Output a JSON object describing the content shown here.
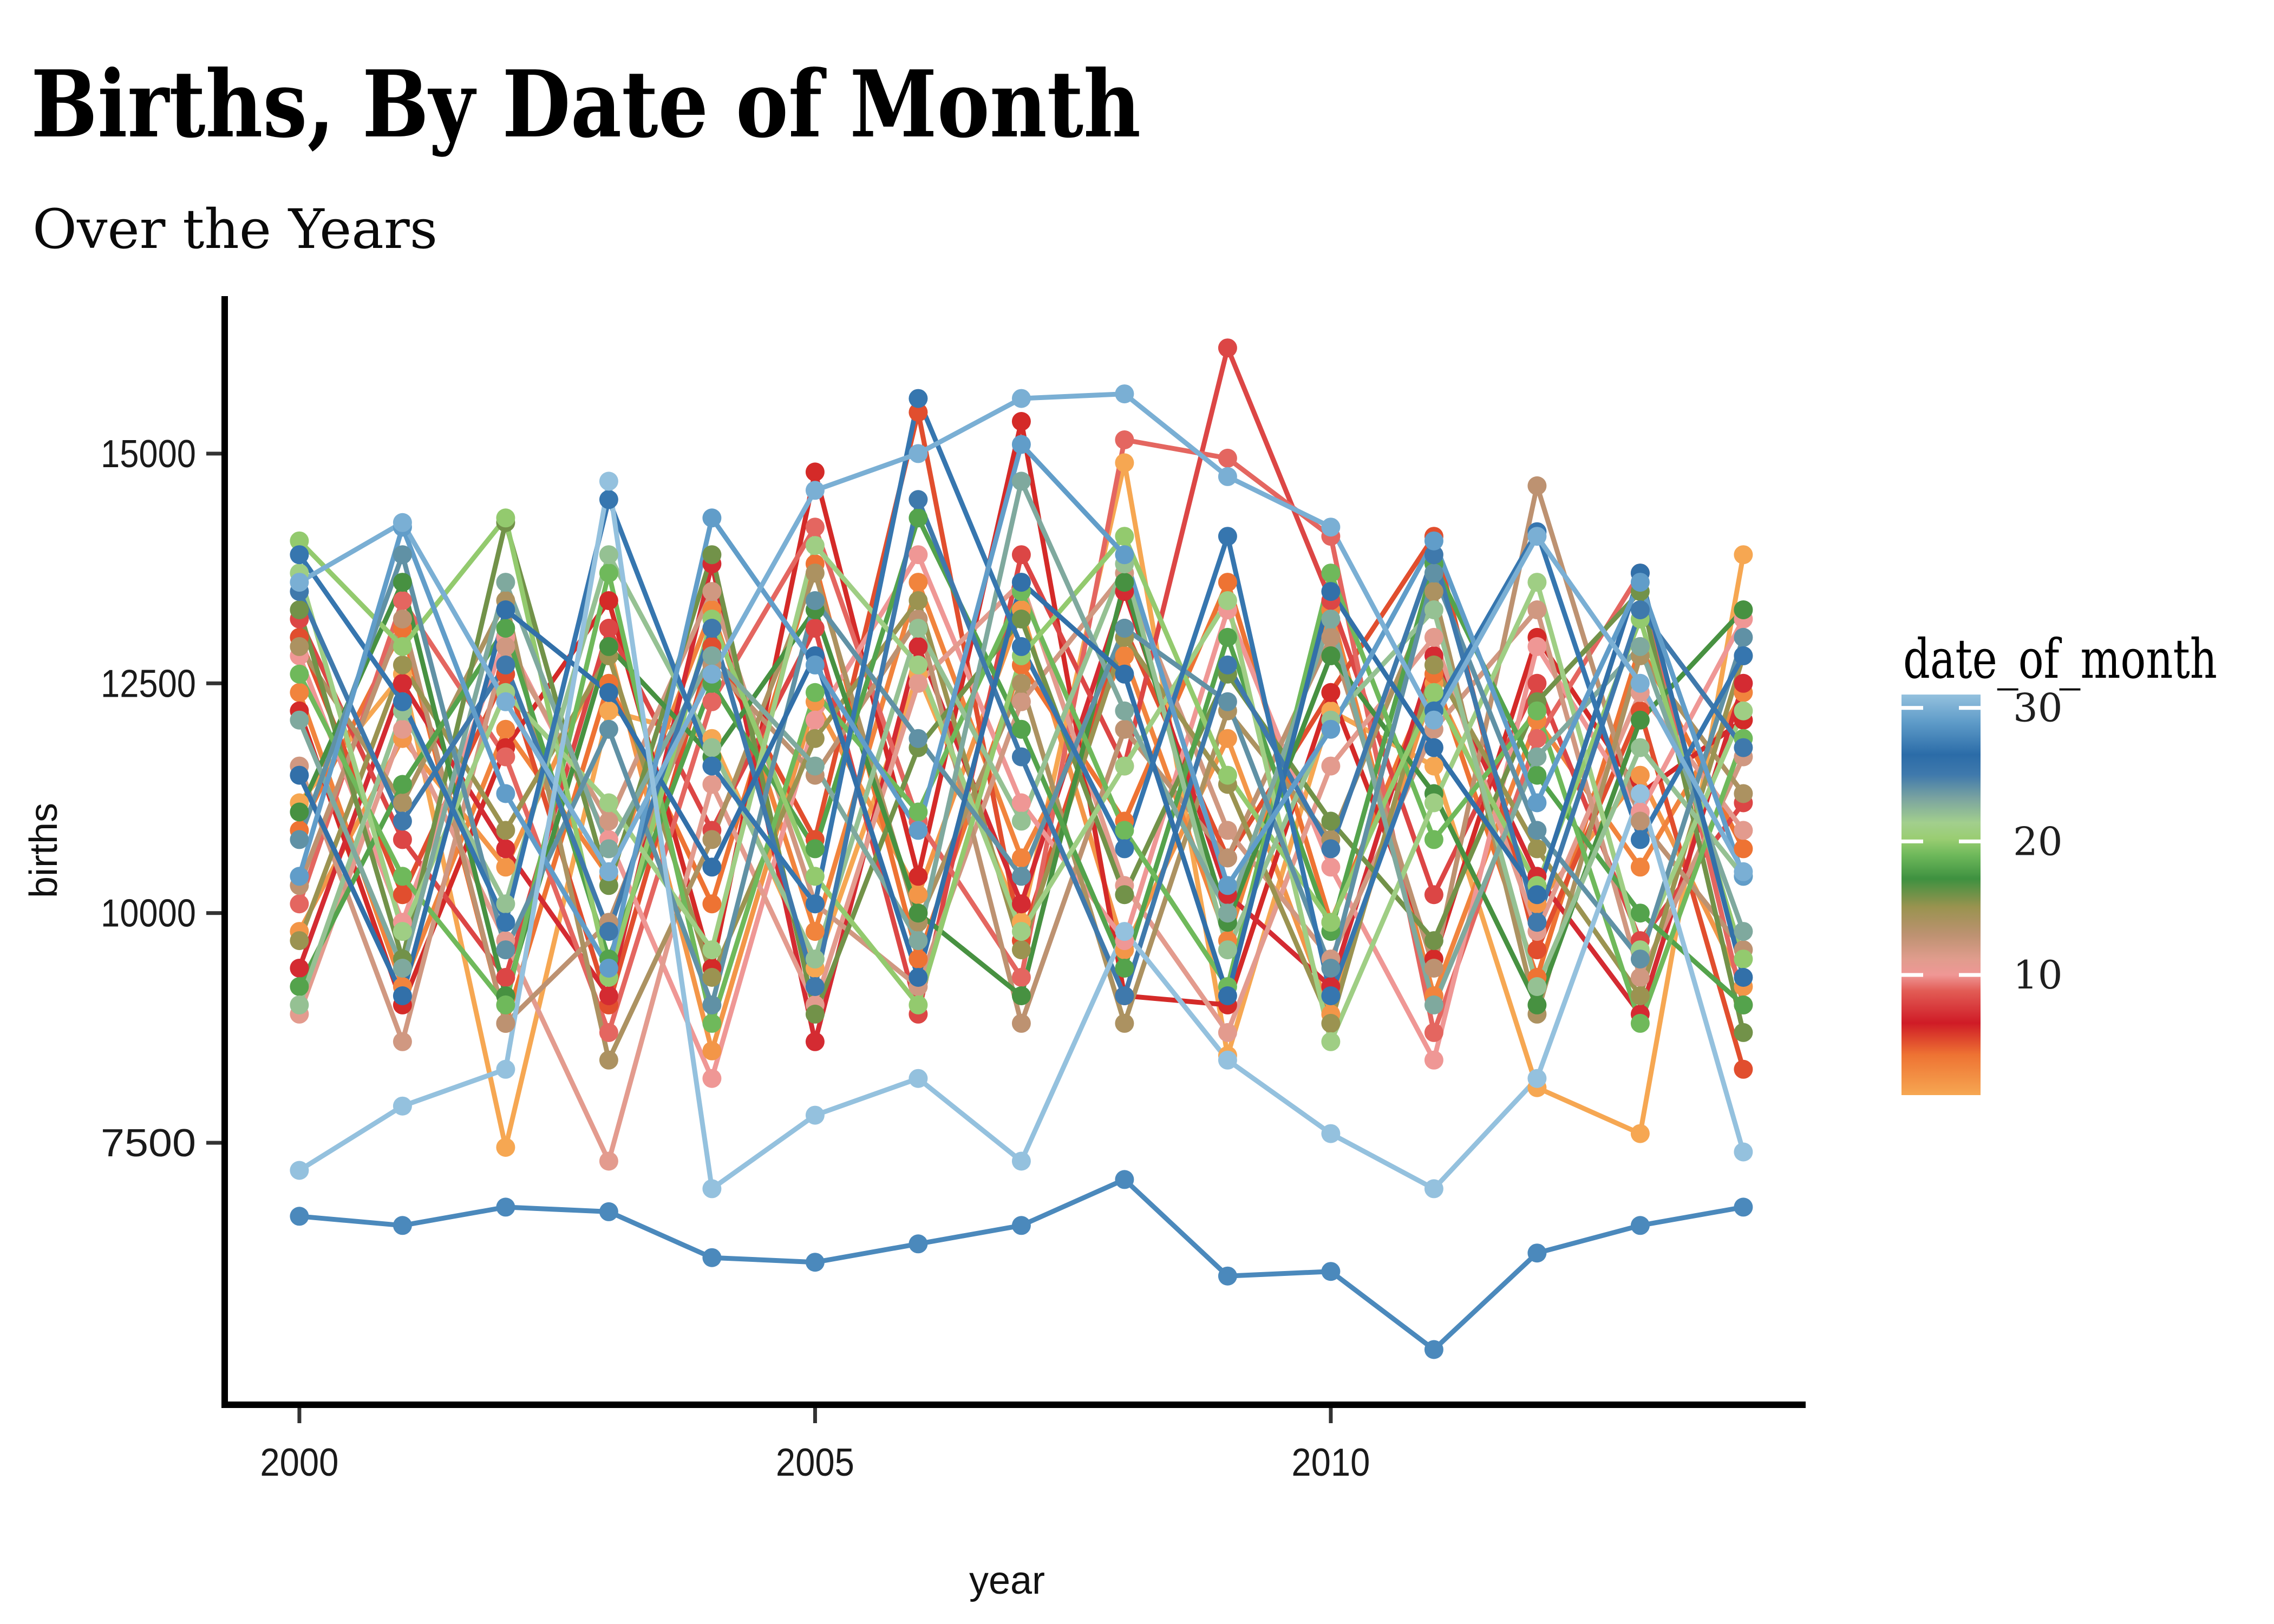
{
  "chart_data": {
    "type": "line",
    "title": "Births, By Date of Month",
    "subtitle": "Over the Years",
    "xlabel": "year",
    "ylabel": "births",
    "x": [
      2000,
      2001,
      2002,
      2003,
      2004,
      2005,
      2006,
      2007,
      2008,
      2009,
      2010,
      2011,
      2012,
      2013,
      2014
    ],
    "axes": {
      "x_ticks": [
        2000,
        2005,
        2010
      ],
      "y_ticks": [
        7500,
        10000,
        12500,
        15000
      ],
      "x_domain": [
        1999.276,
        2014.604
      ],
      "y_domain": [
        4649,
        16714
      ],
      "grid": false,
      "panel_border": "left-bottom-only"
    },
    "legend": {
      "title": "date_of_month",
      "position": "right",
      "ticks": [
        10,
        20,
        30
      ],
      "domain": [
        1,
        31
      ]
    },
    "color_scale": {
      "stops": [
        {
          "t": 0.0,
          "color": "#F6A752"
        },
        {
          "t": 0.1,
          "color": "#EE7333"
        },
        {
          "t": 0.18,
          "color": "#CF1B26"
        },
        {
          "t": 0.26,
          "color": "#E25C55"
        },
        {
          "t": 0.3,
          "color": "#EF9795"
        },
        {
          "t": 0.34,
          "color": "#E09C8D"
        },
        {
          "t": 0.4,
          "color": "#BD9271"
        },
        {
          "t": 0.47,
          "color": "#99934F"
        },
        {
          "t": 0.54,
          "color": "#3E9140"
        },
        {
          "t": 0.6,
          "color": "#6FB95B"
        },
        {
          "t": 0.64,
          "color": "#9ACD72"
        },
        {
          "t": 0.68,
          "color": "#A2CF8D"
        },
        {
          "t": 0.74,
          "color": "#7BA4A0"
        },
        {
          "t": 0.8,
          "color": "#3F79AC"
        },
        {
          "t": 0.85,
          "color": "#2B6CA8"
        },
        {
          "t": 0.93,
          "color": "#5E9BC8"
        },
        {
          "t": 1.0,
          "color": "#94C1DE"
        }
      ]
    },
    "series": [
      {
        "date_of_month": 1,
        "values": [
          11200,
          12600,
          7450,
          12200,
          11900,
          9400,
          12600,
          9900,
          14900,
          8450,
          12200,
          11600,
          8100,
          7600,
          13900
        ]
      },
      {
        "date_of_month": 2,
        "values": [
          9800,
          11900,
          10500,
          12900,
          8500,
          12300,
          10200,
          13300,
          9600,
          11900,
          8900,
          12500,
          10100,
          11500,
          9200
        ]
      },
      {
        "date_of_month": 3,
        "values": [
          12400,
          9200,
          12000,
          10400,
          13300,
          9800,
          13600,
          10600,
          12800,
          9700,
          13300,
          9100,
          12100,
          10500,
          12400
        ]
      },
      {
        "date_of_month": 4,
        "values": [
          10900,
          13100,
          8800,
          12500,
          10100,
          13800,
          9500,
          12700,
          11000,
          13600,
          9900,
          12600,
          9300,
          12900,
          10700
        ]
      },
      {
        "date_of_month": 5,
        "values": [
          13000,
          10200,
          12600,
          9000,
          12900,
          10800,
          15450,
          9700,
          13100,
          10600,
          12400,
          14100,
          9600,
          12200,
          8300
        ]
      },
      {
        "date_of_month": 6,
        "values": [
          12200,
          9000,
          11800,
          13400,
          9400,
          14800,
          10400,
          15350,
          9100,
          9000,
          12400,
          9500,
          13000,
          11300,
          12100
        ]
      },
      {
        "date_of_month": 7,
        "values": [
          9400,
          12500,
          10700,
          9100,
          13800,
          8600,
          12900,
          10100,
          13500,
          10200,
          9200,
          12800,
          10400,
          8900,
          12500
        ]
      },
      {
        "date_of_month": 8,
        "values": [
          13200,
          10800,
          9300,
          13100,
          10900,
          13100,
          8900,
          13900,
          11600,
          16150,
          13400,
          10200,
          12500,
          9700,
          11200
        ]
      },
      {
        "date_of_month": 9,
        "values": [
          10100,
          13400,
          11700,
          8700,
          12300,
          14200,
          11000,
          9300,
          15150,
          14950,
          14100,
          8700,
          11900,
          13700,
          9000
        ]
      },
      {
        "date_of_month": 10,
        "values": [
          12800,
          9900,
          13000,
          10800,
          8200,
          12100,
          13900,
          11200,
          9700,
          13300,
          10500,
          8400,
          12900,
          11100,
          13200
        ]
      },
      {
        "date_of_month": 11,
        "values": [
          8900,
          12000,
          9700,
          7300,
          11400,
          9000,
          12500,
          13600,
          10300,
          8700,
          11600,
          13000,
          9800,
          12400,
          10900
        ]
      },
      {
        "date_of_month": 12,
        "values": [
          11600,
          8600,
          12900,
          11000,
          13500,
          10100,
          9200,
          12300,
          13700,
          10900,
          9500,
          12000,
          13300,
          9300,
          11700
        ]
      },
      {
        "date_of_month": 13,
        "values": [
          10300,
          13200,
          8800,
          9900,
          12700,
          11500,
          13200,
          8800,
          12000,
          10600,
          13000,
          9400,
          14650,
          11000,
          9600
        ]
      },
      {
        "date_of_month": 14,
        "values": [
          12900,
          11200,
          13400,
          8400,
          10800,
          13700,
          9900,
          12500,
          8800,
          12200,
          10800,
          13500,
          8900,
          12800,
          11300
        ]
      },
      {
        "date_of_month": 15,
        "values": [
          9700,
          12700,
          10900,
          12800,
          9300,
          11900,
          13400,
          9600,
          13000,
          11400,
          8800,
          12700,
          10700,
          9100,
          12800
        ]
      },
      {
        "date_of_month": 16,
        "values": [
          13300,
          9500,
          14250,
          10300,
          13900,
          8900,
          11800,
          13200,
          10200,
          12600,
          11000,
          9700,
          12300,
          13500,
          8700
        ]
      },
      {
        "date_of_month": 17,
        "values": [
          11100,
          13600,
          9100,
          12900,
          11700,
          13300,
          10000,
          9100,
          13600,
          9900,
          12800,
          11300,
          9000,
          12100,
          13300
        ]
      },
      {
        "date_of_month": 18,
        "values": [
          9200,
          11400,
          13100,
          9500,
          12500,
          10700,
          14300,
          12000,
          9400,
          13000,
          9800,
          13800,
          11500,
          10000,
          9000
        ]
      },
      {
        "date_of_month": 19,
        "values": [
          12600,
          10400,
          9000,
          13700,
          8800,
          12400,
          11100,
          13500,
          10900,
          9200,
          13700,
          10800,
          12200,
          8800,
          11900
        ]
      },
      {
        "date_of_month": 20,
        "values": [
          14050,
          12900,
          14300,
          9300,
          13200,
          10400,
          9000,
          12800,
          14100,
          11500,
          9900,
          12400,
          10300,
          13200,
          9500
        ]
      },
      {
        "date_of_month": 21,
        "values": [
          13700,
          9800,
          12400,
          11200,
          9600,
          14000,
          12700,
          9800,
          11600,
          13400,
          8600,
          11200,
          13600,
          9600,
          12200
        ]
      },
      {
        "date_of_month": 22,
        "values": [
          9000,
          12200,
          10100,
          13900,
          11800,
          9500,
          13100,
          11000,
          13800,
          9600,
          12100,
          13300,
          9200,
          11800,
          10400
        ]
      },
      {
        "date_of_month": 23,
        "values": [
          12100,
          9400,
          13600,
          10700,
          12800,
          11600,
          9700,
          14700,
          12200,
          10000,
          13200,
          9000,
          11700,
          12900,
          9800
        ]
      },
      {
        "date_of_month": 24,
        "values": [
          10800,
          13900,
          9600,
          12000,
          9000,
          13400,
          11900,
          10400,
          13100,
          12300,
          9400,
          13700,
          10900,
          9500,
          13000
        ]
      },
      {
        "date_of_month": 25,
        "values": [
          13500,
          11000,
          12700,
          9800,
          13100,
          9200,
          14500,
          11700,
          9100,
          12700,
          10700,
          13900,
          9900,
          13300,
          11800
        ]
      },
      {
        "date_of_month": 26,
        "values": [
          11500,
          9100,
          13300,
          12400,
          10500,
          12800,
          9300,
          13600,
          12600,
          9100,
          13500,
          11800,
          10200,
          13700,
          9300
        ]
      },
      {
        "date_of_month": 27,
        "values": [
          13900,
          12300,
          9900,
          14500,
          11600,
          10100,
          15600,
          12900,
          10700,
          14100,
          9100,
          12200,
          14150,
          10800,
          12800
        ]
      },
      {
        "date_of_month": 28,
        "values": [
          6700,
          6600,
          6800,
          6750,
          6250,
          6200,
          6400,
          6600,
          7100,
          6050,
          6100,
          5250,
          6300,
          6600,
          6800
        ]
      },
      {
        "date_of_month": 29,
        "values": [
          10400,
          14200,
          11300,
          9400,
          14300,
          12700,
          10900,
          15100,
          13900,
          10300,
          12000,
          14050,
          11200,
          13600,
          10400
        ]
      },
      {
        "date_of_month": 30,
        "values": [
          13600,
          14250,
          12300,
          10450,
          12600,
          14600,
          15000,
          15600,
          15650,
          14750,
          14200,
          12100,
          14100,
          12500,
          10450
        ]
      },
      {
        "date_of_month": 31,
        "values": [
          7200,
          7900,
          8300,
          14700,
          7000,
          7800,
          8200,
          7300,
          9800,
          8400,
          7600,
          7000,
          8200,
          11300,
          7400
        ]
      }
    ],
    "style": {
      "point_radius": 17.5,
      "line_width": 9,
      "axis_color": "#000000",
      "tick_color": "#333333",
      "text_color": "#1a1a1a",
      "background": "#ffffff"
    }
  }
}
